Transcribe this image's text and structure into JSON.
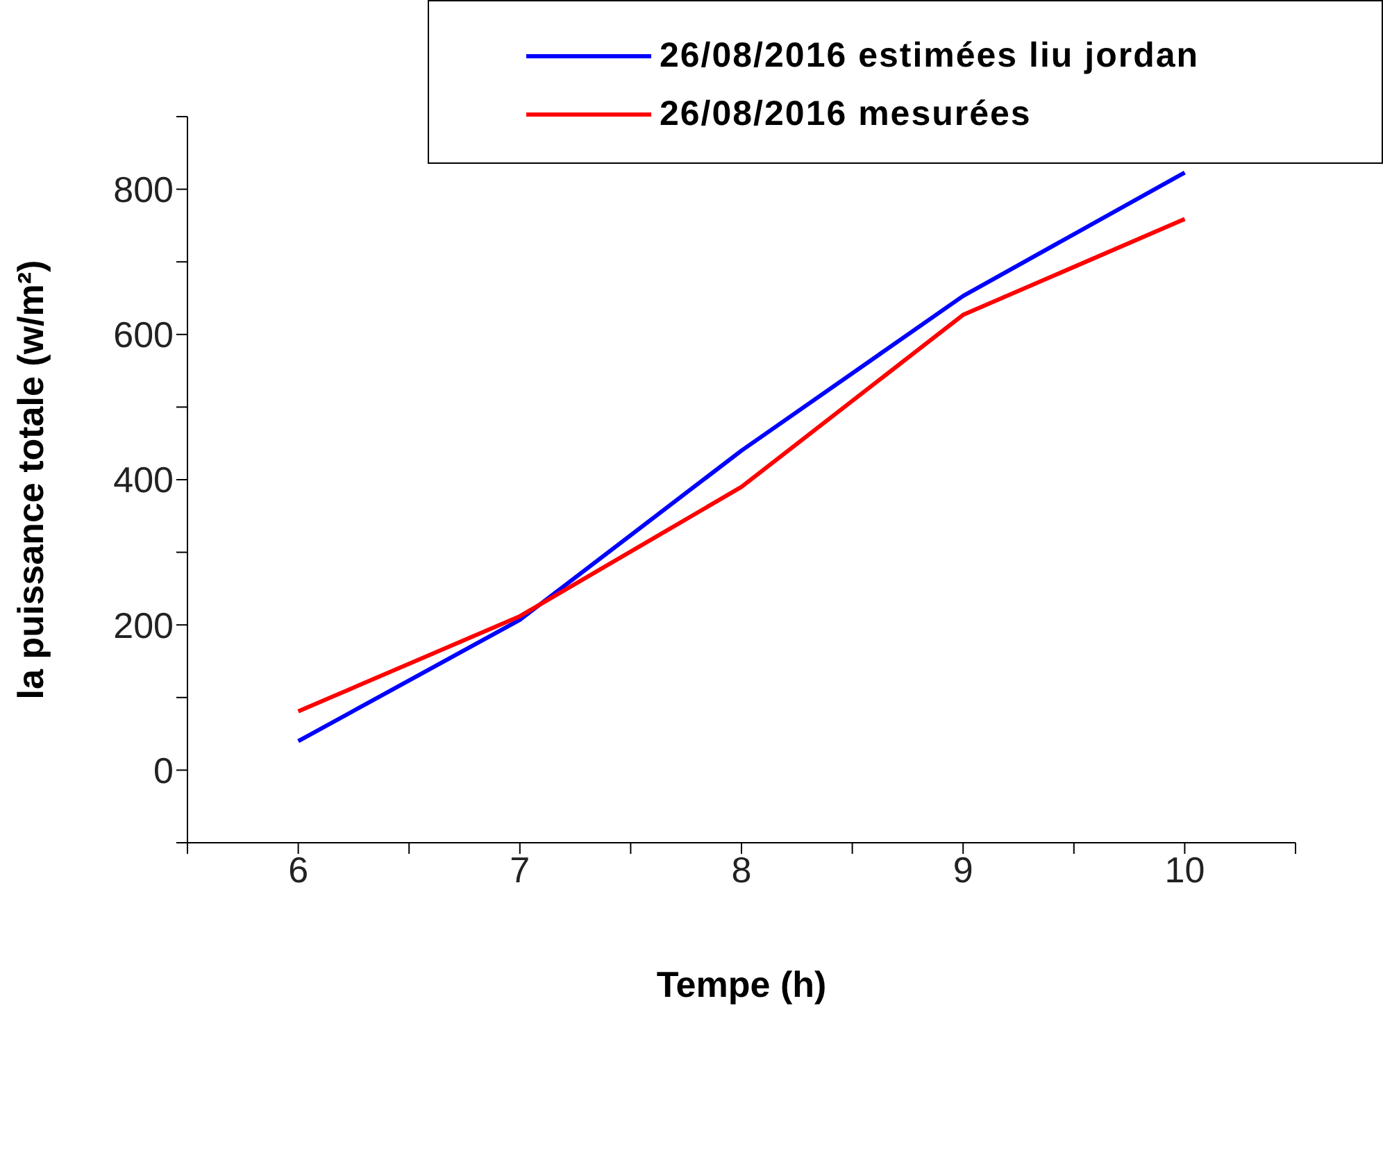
{
  "chart_data": {
    "type": "line",
    "xlabel": "Tempe (h)",
    "ylabel": "la puissance totale (w/m²)",
    "x": [
      6,
      7,
      8,
      9,
      10
    ],
    "series": [
      {
        "name": "26/08/2016 estimées liu jordan",
        "color": "#0000ff",
        "values": [
          40,
          207,
          440,
          653,
          823
        ]
      },
      {
        "name": "26/08/2016 mesurées",
        "color": "#ff0000",
        "values": [
          81,
          212,
          390,
          627,
          759
        ]
      }
    ],
    "xlim": [
      5.5,
      10.5
    ],
    "xticks": [
      {
        "value": 5.5,
        "label": null
      },
      6,
      {
        "value": 6.5,
        "label": null
      },
      7,
      {
        "value": 7.5,
        "label": null
      },
      8,
      {
        "value": 8.5,
        "label": null
      },
      9,
      {
        "value": 9.5,
        "label": null
      },
      10,
      {
        "value": 10.5,
        "label": null
      }
    ],
    "ylim": [
      -100,
      900
    ],
    "yticks": [
      {
        "value": -100,
        "label": null
      },
      0,
      {
        "value": 100,
        "label": null
      },
      200,
      {
        "value": 300,
        "label": null
      },
      400,
      {
        "value": 500,
        "label": null
      },
      600,
      {
        "value": 700,
        "label": null
      },
      800,
      {
        "value": 900,
        "label": null
      }
    ],
    "legend": "top right",
    "grid": false,
    "marker": "none",
    "line_style": "solid"
  }
}
